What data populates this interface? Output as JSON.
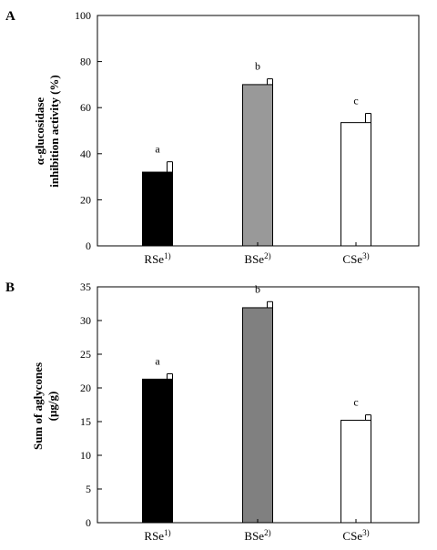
{
  "chart_data": [
    {
      "panel": "A",
      "type": "bar",
      "categories": [
        "RSe",
        "BSe",
        "CSe"
      ],
      "category_superscripts": [
        "1)",
        "2)",
        "3)"
      ],
      "values": [
        32,
        70,
        53.5
      ],
      "errors": [
        4.5,
        2.5,
        4
      ],
      "significance": [
        "a",
        "b",
        "c"
      ],
      "bar_colors": [
        "#000000",
        "#999999",
        "#ffffff"
      ],
      "ylabel_line1": "α-glucosidase",
      "ylabel_line2": "inhibition activity (%)",
      "ylim": [
        0,
        100
      ],
      "yticks": [
        0,
        20,
        40,
        60,
        80,
        100
      ],
      "grid": false
    },
    {
      "panel": "B",
      "type": "bar",
      "categories": [
        "RSe",
        "BSe",
        "CSe"
      ],
      "category_superscripts": [
        "1)",
        "2)",
        "3)"
      ],
      "values": [
        21.3,
        31.9,
        15.2
      ],
      "errors": [
        0.8,
        0.9,
        0.8
      ],
      "significance": [
        "a",
        "b",
        "c"
      ],
      "bar_colors": [
        "#000000",
        "#808080",
        "#ffffff"
      ],
      "ylabel_line1": "Sum of aglycones",
      "ylabel_line2": "(μg/g)",
      "ylim": [
        0,
        35
      ],
      "yticks": [
        0,
        5,
        10,
        15,
        20,
        25,
        30,
        35
      ],
      "grid": false
    }
  ]
}
